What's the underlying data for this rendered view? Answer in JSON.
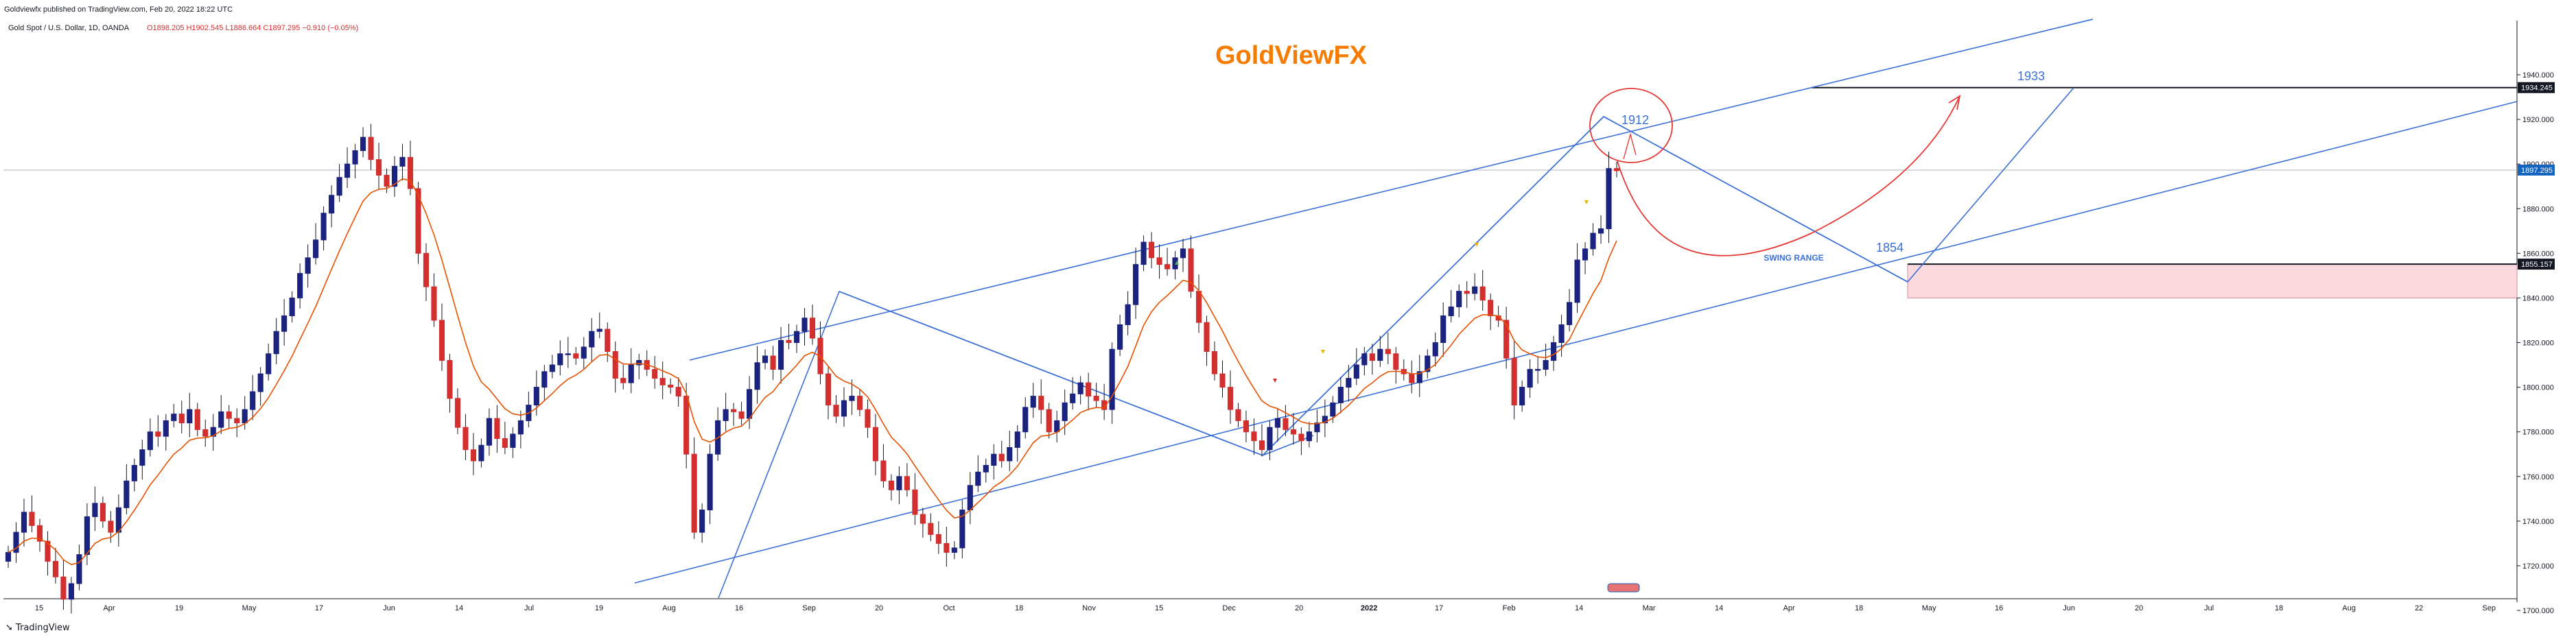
{
  "header": {
    "published": "Goldviewfx published on TradingView.com, Feb 20, 2022 18:22 UTC",
    "symbol": "Gold Spot / U.S. Dollar, 1D, OANDA",
    "ohlc": "O1898.205  H1902.545  L1886.664  C1897.295  −0.910 (−0.05%)"
  },
  "brand": {
    "text": "GoldViewFX",
    "color": "#f57c00"
  },
  "footer": {
    "logo_text": "TradingView"
  },
  "colors": {
    "up": "#ffffff",
    "down": "#d32f2f",
    "bull_body": "#1a237e",
    "ema": "#e65100",
    "channel": "#3a6fd8",
    "circle": "#e53935",
    "zone": "#fadadf"
  },
  "chart_data": {
    "type": "candlestick",
    "title": "Gold Spot / U.S. Dollar, 1D, OANDA",
    "ylim": [
      1690,
      1950
    ],
    "y_ticks": [
      "1940.000",
      "1920.000",
      "1900.000",
      "1880.000",
      "1860.000",
      "1840.000",
      "1820.000",
      "1800.000",
      "1780.000",
      "1760.000",
      "1740.000",
      "1720.000",
      "1700.000"
    ],
    "x_ticks": [
      "15",
      "Apr",
      "19",
      "May",
      "17",
      "Jun",
      "14",
      "Jul",
      "19",
      "Aug",
      "16",
      "Sep",
      "20",
      "Oct",
      "18",
      "Nov",
      "15",
      "Dec",
      "20",
      "2022",
      "17",
      "Feb",
      "14",
      "Mar",
      "14",
      "Apr",
      "18",
      "May",
      "16",
      "Jun",
      "20",
      "Jul",
      "18",
      "Aug",
      "22",
      "Sep"
    ],
    "price_badges": [
      {
        "label": "1934.245",
        "value": 1934.245,
        "style": "dark"
      },
      {
        "label": "1897.295",
        "value": 1897.295,
        "style": "blue"
      },
      {
        "label": "1855.157",
        "value": 1855.157,
        "style": "dark"
      }
    ],
    "annotations": [
      {
        "text": "1933",
        "value": 1933
      },
      {
        "text": "1912",
        "value": 1912
      },
      {
        "text": "1854",
        "value": 1854
      },
      {
        "text": "SWING RANGE",
        "value": 1843
      }
    ],
    "levels": {
      "target": 1934.245,
      "current": 1897.295,
      "support": 1855.157,
      "zone_low": 1840
    },
    "closes": [
      1726,
      1735,
      1744,
      1738,
      1731,
      1722,
      1715,
      1705,
      1712,
      1725,
      1742,
      1748,
      1740,
      1735,
      1746,
      1758,
      1765,
      1772,
      1780,
      1778,
      1785,
      1788,
      1784,
      1790,
      1781,
      1778,
      1782,
      1789,
      1786,
      1784,
      1790,
      1798,
      1806,
      1815,
      1825,
      1832,
      1840,
      1851,
      1858,
      1866,
      1878,
      1886,
      1894,
      1900,
      1906,
      1912,
      1902,
      1895,
      1890,
      1899,
      1903,
      1889,
      1860,
      1845,
      1830,
      1812,
      1795,
      1782,
      1772,
      1767,
      1774,
      1786,
      1777,
      1773,
      1779,
      1785,
      1792,
      1800,
      1807,
      1810,
      1815,
      1815,
      1813,
      1818,
      1825,
      1826,
      1816,
      1804,
      1802,
      1810,
      1812,
      1808,
      1804,
      1801,
      1800,
      1796,
      1770,
      1735,
      1745,
      1770,
      1785,
      1790,
      1789,
      1786,
      1799,
      1811,
      1814,
      1808,
      1821,
      1820,
      1825,
      1831,
      1822,
      1806,
      1792,
      1787,
      1794,
      1796,
      1790,
      1782,
      1767,
      1758,
      1754,
      1760,
      1754,
      1743,
      1739,
      1734,
      1730,
      1726,
      1728,
      1745,
      1756,
      1762,
      1765,
      1770,
      1767,
      1773,
      1780,
      1791,
      1796,
      1790,
      1780,
      1785,
      1793,
      1797,
      1802,
      1796,
      1794,
      1790,
      1817,
      1828,
      1837,
      1855,
      1865,
      1858,
      1855,
      1853,
      1858,
      1862,
      1843,
      1829,
      1816,
      1806,
      1800,
      1790,
      1785,
      1780,
      1776,
      1772,
      1782,
      1786,
      1781,
      1779,
      1776,
      1780,
      1784,
      1787,
      1793,
      1800,
      1804,
      1810,
      1815,
      1812,
      1817,
      1815,
      1808,
      1806,
      1802,
      1807,
      1814,
      1820,
      1832,
      1836,
      1843,
      1842,
      1845,
      1839,
      1832,
      1830,
      1813,
      1792,
      1800,
      1808,
      1808,
      1812,
      1820,
      1828,
      1838,
      1857,
      1862,
      1869,
      1871,
      1898,
      1897
    ]
  }
}
